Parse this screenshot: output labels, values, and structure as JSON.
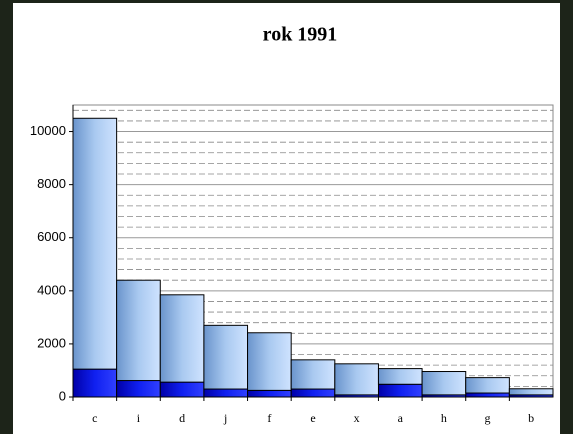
{
  "chart_data": {
    "type": "bar",
    "stacked": true,
    "title": "rok 1991",
    "categories": [
      "c",
      "i",
      "d",
      "j",
      "f",
      "e",
      "x",
      "a",
      "h",
      "g",
      "b"
    ],
    "series": [
      {
        "color": "#0a14d8",
        "values": [
          1050,
          620,
          560,
          300,
          250,
          300,
          80,
          480,
          80,
          150,
          80
        ]
      },
      {
        "color": "#8fb8e8",
        "values": [
          9450,
          3780,
          3290,
          2400,
          2170,
          1100,
          1170,
          590,
          880,
          580,
          230
        ]
      }
    ],
    "ylim": [
      0,
      11000
    ],
    "yticks": [
      0,
      2000,
      4000,
      6000,
      8000,
      10000
    ],
    "grid": true,
    "minor_grid_step": 400
  }
}
